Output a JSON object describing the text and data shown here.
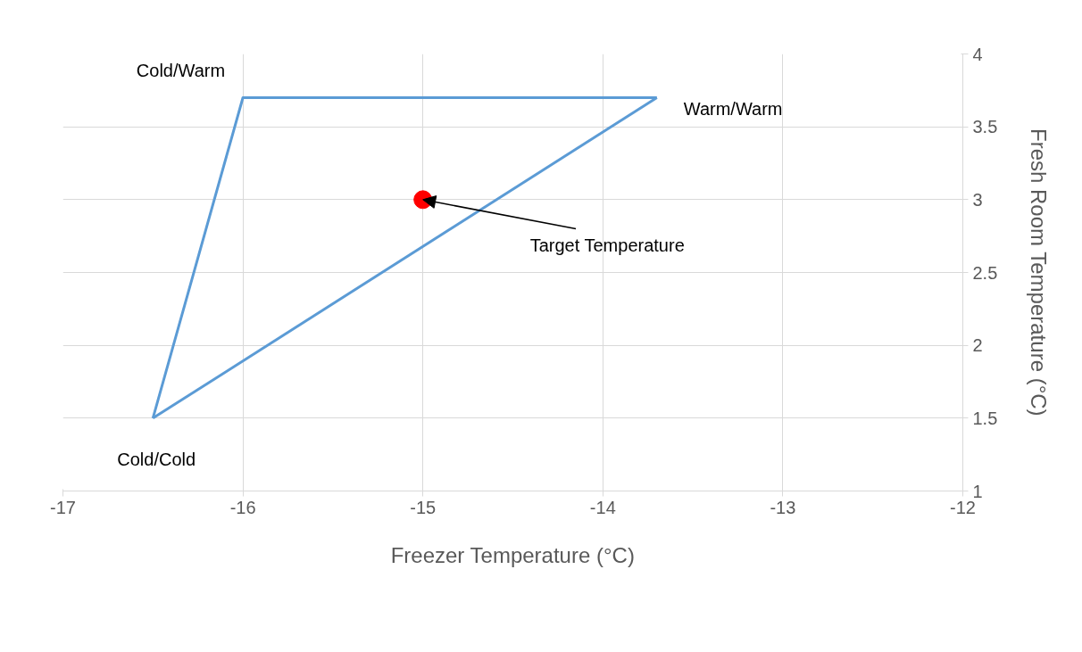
{
  "chart_data": {
    "type": "line",
    "xlabel": "Freezer Temperature (°C)",
    "ylabel": "Fresh Room Temperature (°C)",
    "series": [
      {
        "color": "#5b9bd5",
        "x": [
          -16.5,
          -16,
          -13.7
        ],
        "values": [
          1.5,
          3.7,
          3.7
        ]
      },
      {
        "color": "#5b9bd5",
        "x": [
          -16.5,
          -13.7
        ],
        "values": [
          1.5,
          3.7
        ]
      },
      {
        "type": "scatter",
        "color": "#ff0000",
        "x": [
          -15
        ],
        "values": [
          3
        ],
        "marker": "circle"
      }
    ],
    "annotations": [
      {
        "text": "Cold/Warm",
        "x": -16,
        "y": 3.7
      },
      {
        "text": "Warm/Warm",
        "x": -13.7,
        "y": 3.7
      },
      {
        "text": "Cold/Cold",
        "x": -16.5,
        "y": 1.5
      },
      {
        "text": "Target Temperature",
        "x": -15,
        "y": 3
      }
    ],
    "xlim": [
      -17,
      -12
    ],
    "xticks": [
      -17,
      -16,
      -15,
      -14,
      -13,
      -12
    ],
    "ylim": [
      1,
      4
    ],
    "yticks": [
      1,
      1.5,
      2,
      2.5,
      3,
      3.5,
      4
    ],
    "grid": true
  }
}
